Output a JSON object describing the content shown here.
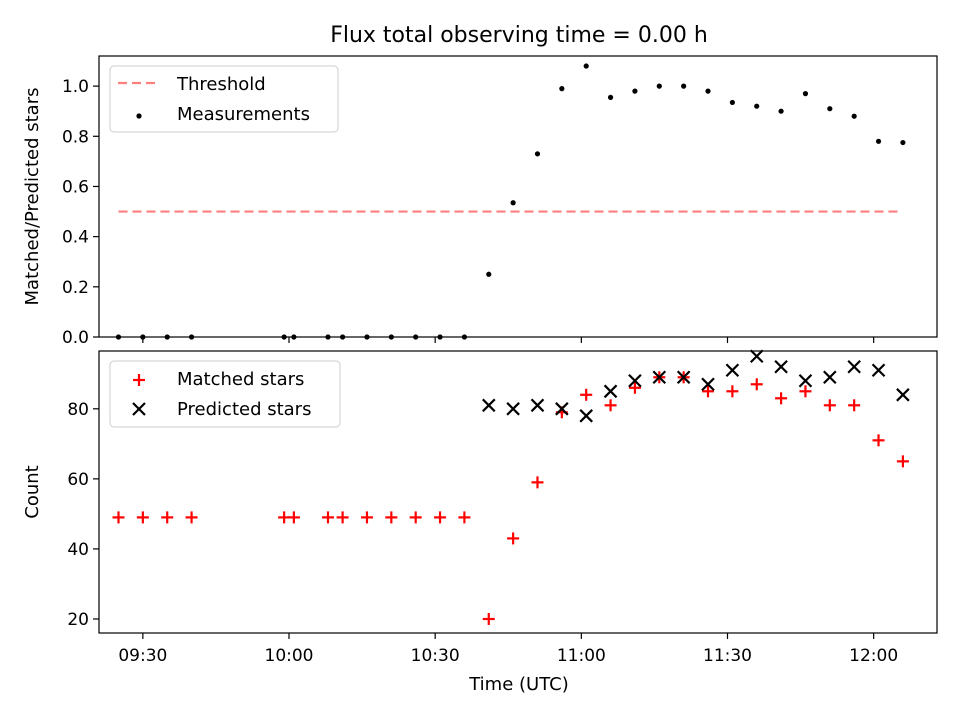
{
  "title": "Flux total observing time = 0.00 h",
  "colors": {
    "threshold": "#ff7f7f",
    "measurement": "#000000",
    "matched": "#ff0000",
    "predicted": "#000000"
  },
  "chart_data": [
    {
      "type": "scatter",
      "ylabel": "Matched/Predicted stars",
      "xlabel": "",
      "xlim": [
        "09:21",
        "12:13"
      ],
      "ylim": [
        0,
        1.12
      ],
      "yticks": [
        0.0,
        0.2,
        0.4,
        0.6,
        0.8,
        1.0
      ],
      "ytick_labels": [
        "0.0",
        "0.2",
        "0.4",
        "0.6",
        "0.8",
        "1.0"
      ],
      "legend_position": "top-left",
      "series": [
        {
          "name": "Threshold",
          "style": "dashed-line",
          "x": [
            "09:25",
            "12:05"
          ],
          "y": [
            0.5,
            0.5
          ]
        },
        {
          "name": "Measurements",
          "style": "dot",
          "x": [
            "09:25",
            "09:30",
            "09:35",
            "09:40",
            "09:59",
            "10:01",
            "10:08",
            "10:11",
            "10:16",
            "10:21",
            "10:26",
            "10:31",
            "10:36",
            "10:41",
            "10:46",
            "10:51",
            "10:56",
            "11:01",
            "11:06",
            "11:11",
            "11:16",
            "11:21",
            "11:26",
            "11:31",
            "11:36",
            "11:41",
            "11:46",
            "11:51",
            "11:56",
            "12:01",
            "12:06"
          ],
          "y": [
            0,
            0,
            0,
            0,
            0,
            0,
            0,
            0,
            0,
            0,
            0,
            0,
            0,
            0.25,
            0.535,
            0.73,
            0.99,
            1.08,
            0.955,
            0.98,
            1.0,
            1.0,
            0.98,
            0.935,
            0.92,
            0.9,
            0.97,
            0.91,
            0.88,
            0.78,
            0.775
          ]
        }
      ]
    },
    {
      "type": "scatter",
      "ylabel": "Count",
      "xlabel": "Time (UTC)",
      "xlim": [
        "09:21",
        "12:13"
      ],
      "ylim": [
        16,
        96.5
      ],
      "yticks": [
        20,
        40,
        60,
        80
      ],
      "ytick_labels": [
        "20",
        "40",
        "60",
        "80"
      ],
      "xticks": [
        "09:30",
        "10:00",
        "10:30",
        "11:00",
        "11:30",
        "12:00"
      ],
      "xtick_labels": [
        "09:30",
        "10:00",
        "10:30",
        "11:00",
        "11:30",
        "12:00"
      ],
      "legend_position": "top-left",
      "series": [
        {
          "name": "Matched stars",
          "style": "plus",
          "x": [
            "09:25",
            "09:30",
            "09:35",
            "09:40",
            "09:59",
            "10:01",
            "10:08",
            "10:11",
            "10:16",
            "10:21",
            "10:26",
            "10:31",
            "10:36",
            "10:41",
            "10:46",
            "10:51",
            "10:56",
            "11:01",
            "11:06",
            "11:11",
            "11:16",
            "11:21",
            "11:26",
            "11:31",
            "11:36",
            "11:41",
            "11:46",
            "11:51",
            "11:56",
            "12:01",
            "12:06"
          ],
          "y": [
            49,
            49,
            49,
            49,
            49,
            49,
            49,
            49,
            49,
            49,
            49,
            49,
            49,
            20,
            43,
            59,
            79,
            84,
            81,
            86,
            89,
            89,
            85,
            85,
            87,
            83,
            85,
            81,
            81,
            71,
            65
          ]
        },
        {
          "name": "Predicted stars",
          "style": "x",
          "x": [
            "10:41",
            "10:46",
            "10:51",
            "10:56",
            "11:01",
            "11:06",
            "11:11",
            "11:16",
            "11:21",
            "11:26",
            "11:31",
            "11:36",
            "11:41",
            "11:46",
            "11:51",
            "11:56",
            "12:01",
            "12:06"
          ],
          "y": [
            81,
            80,
            81,
            80,
            78,
            85,
            88,
            89,
            89,
            87,
            91,
            95,
            92,
            88,
            89,
            92,
            91,
            84
          ]
        }
      ]
    }
  ]
}
